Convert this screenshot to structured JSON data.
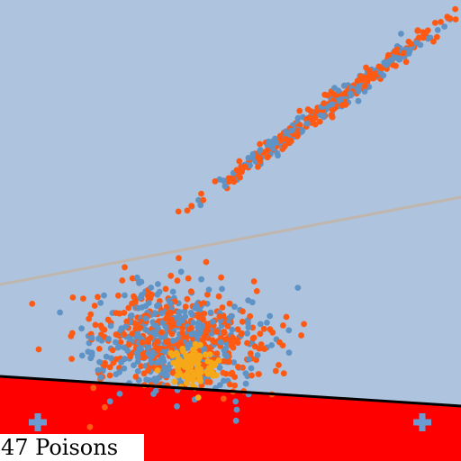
{
  "colors": {
    "background": "#aec3de",
    "danger_zone": "#ff0000",
    "boundary_line": "#000000",
    "guide_line": "#c0b6ad",
    "point_blue": "#5f93c5",
    "point_orange": "#ff5a14",
    "point_gold": "#f7a818",
    "marker": "#6b9bd1"
  },
  "icons": {
    "marker": "plus-icon"
  },
  "status": {
    "poison_label": "47 Poisons"
  }
}
